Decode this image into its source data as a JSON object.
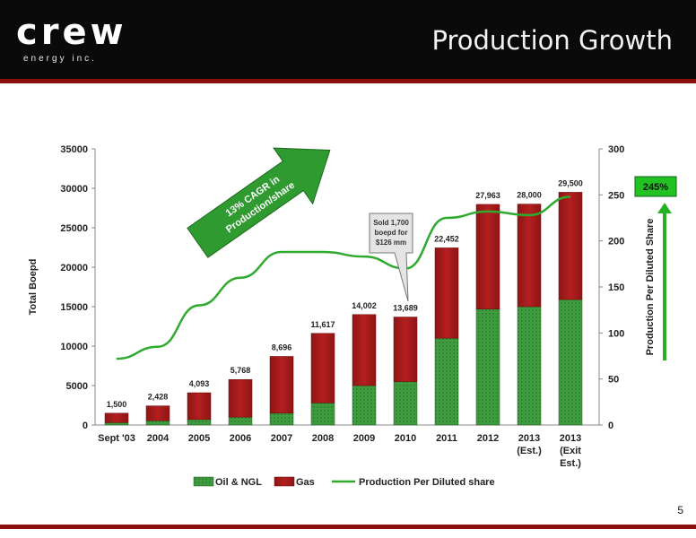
{
  "header": {
    "logo_text": "crew",
    "logo_sub": "energy inc.",
    "title": "Production Growth"
  },
  "page_number": "5",
  "colors": {
    "oil": "#3f9b3f",
    "gas": "#b41f1f",
    "line": "#2eaa2e",
    "header_bg": "#0a0a0a",
    "accent_red": "#8b1010"
  },
  "chart_data": {
    "type": "bar",
    "stacked": true,
    "categories": [
      "Sept '03",
      "2004",
      "2005",
      "2006",
      "2007",
      "2008",
      "2009",
      "2010",
      "2011",
      "2012",
      "2013\n(Est.)",
      "2013\n(Exit\nEst.)"
    ],
    "series": [
      {
        "name": "Oil & NGL",
        "values": [
          300,
          550,
          700,
          1000,
          1500,
          2800,
          5000,
          5500,
          11000,
          14700,
          15000,
          15900
        ]
      },
      {
        "name": "Gas",
        "values": [
          1200,
          1878,
          3393,
          4768,
          7196,
          8817,
          9002,
          8189,
          11452,
          13263,
          13000,
          13600
        ]
      },
      {
        "name": "Production Per Diluted share",
        "type": "line",
        "axis": "right",
        "values": [
          72,
          85,
          130,
          160,
          188,
          188,
          183,
          170,
          225,
          232,
          228,
          248
        ]
      }
    ],
    "totals": [
      "1,500",
      "2,428",
      "4,093",
      "5,768",
      "8,696",
      "11,617",
      "14,002",
      "13,689",
      "22,452",
      "27,963",
      "28,000",
      "29,500"
    ],
    "ylabel": "Total Boepd",
    "y2label": "Production Per Diluted Share",
    "ylim": [
      0,
      35000
    ],
    "y2lim": [
      0,
      300
    ],
    "yticks": [
      "0",
      "5000",
      "10000",
      "15000",
      "20000",
      "25000",
      "30000",
      "35000"
    ],
    "y2ticks": [
      "0",
      "50",
      "100",
      "150",
      "200",
      "250",
      "300"
    ],
    "legend": [
      "Oil & NGL",
      "Gas",
      "Production Per Diluted share"
    ],
    "legend_position": "bottom",
    "grid": false,
    "annotations": {
      "arrow_text": "13% CAGR in Production/share",
      "callout_text": "Sold 1,700 boepd for $126 mm",
      "badge_text": "245%"
    }
  }
}
